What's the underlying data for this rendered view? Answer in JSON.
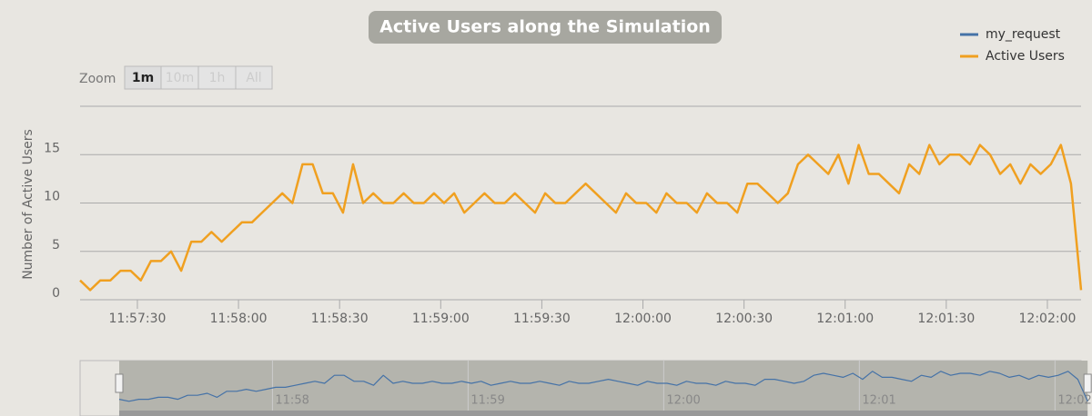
{
  "chart_data": {
    "type": "line",
    "title": "Active Users along the Simulation",
    "y_label": "Number of Active Users",
    "zoom": {
      "label": "Zoom",
      "buttons": [
        "1m",
        "10m",
        "1h",
        "All"
      ]
    },
    "x": [
      "11:57:13",
      "11:57:16",
      "11:57:19",
      "11:57:22",
      "11:57:25",
      "11:57:28",
      "11:57:31",
      "11:57:34",
      "11:57:37",
      "11:57:40",
      "11:57:43",
      "11:57:46",
      "11:57:49",
      "11:57:52",
      "11:57:55",
      "11:57:58",
      "11:58:01",
      "11:58:04",
      "11:58:07",
      "11:58:10",
      "11:58:13",
      "11:58:16",
      "11:58:19",
      "11:58:22",
      "11:58:25",
      "11:58:28",
      "11:58:31",
      "11:58:34",
      "11:58:37",
      "11:58:40",
      "11:58:43",
      "11:58:46",
      "11:58:49",
      "11:58:52",
      "11:58:55",
      "11:58:58",
      "11:59:01",
      "11:59:04",
      "11:59:07",
      "11:59:10",
      "11:59:13",
      "11:59:16",
      "11:59:19",
      "11:59:22",
      "11:59:25",
      "11:59:28",
      "11:59:31",
      "11:59:34",
      "11:59:37",
      "11:59:40",
      "11:59:43",
      "11:59:46",
      "11:59:49",
      "11:59:52",
      "11:59:55",
      "11:59:58",
      "12:00:01",
      "12:00:04",
      "12:00:07",
      "12:00:10",
      "12:00:13",
      "12:00:16",
      "12:00:19",
      "12:00:22",
      "12:00:25",
      "12:00:28",
      "12:00:31",
      "12:00:34",
      "12:00:37",
      "12:00:40",
      "12:00:43",
      "12:00:46",
      "12:00:49",
      "12:00:52",
      "12:00:55",
      "12:00:58",
      "12:01:01",
      "12:01:04",
      "12:01:07",
      "12:01:10",
      "12:01:13",
      "12:01:16",
      "12:01:19",
      "12:01:22",
      "12:01:25",
      "12:01:28",
      "12:01:31",
      "12:01:34",
      "12:01:37",
      "12:01:40",
      "12:01:43",
      "12:01:46",
      "12:01:49",
      "12:01:52",
      "12:01:55",
      "12:01:58",
      "12:02:01",
      "12:02:04",
      "12:02:07",
      "12:02:10"
    ],
    "series": [
      {
        "name": "my_request",
        "color": "#4572a7",
        "values": [
          null,
          null,
          null,
          null,
          null,
          null,
          null,
          null,
          null,
          null,
          null,
          null,
          null,
          null,
          null,
          null,
          null,
          null,
          null,
          null,
          null,
          null,
          null,
          null,
          null,
          null,
          null,
          null,
          null,
          null,
          null,
          null,
          null,
          null,
          null,
          null,
          null,
          null,
          null,
          null,
          null,
          null,
          null,
          null,
          null,
          null,
          null,
          null,
          null,
          null,
          null,
          null,
          null,
          null,
          null,
          null,
          null,
          null,
          null,
          null,
          null,
          null,
          null,
          null,
          null,
          null,
          null,
          null,
          null,
          null,
          null,
          null,
          null,
          null,
          null,
          null,
          null,
          null,
          null,
          null,
          null,
          null,
          null,
          null,
          null,
          null,
          null,
          null,
          null,
          null,
          null,
          null,
          null,
          null,
          null,
          null,
          null,
          null,
          null,
          null
        ]
      },
      {
        "name": "Active Users",
        "color": "#f0a020",
        "values": [
          2,
          1,
          2,
          2,
          3,
          3,
          2,
          4,
          4,
          5,
          3,
          6,
          6,
          7,
          6,
          7,
          8,
          8,
          9,
          10,
          11,
          10,
          14,
          14,
          11,
          11,
          9,
          14,
          10,
          11,
          10,
          10,
          11,
          10,
          10,
          11,
          10,
          11,
          9,
          10,
          11,
          10,
          10,
          11,
          10,
          9,
          11,
          10,
          10,
          11,
          12,
          11,
          10,
          9,
          11,
          10,
          10,
          9,
          11,
          10,
          10,
          9,
          11,
          10,
          10,
          9,
          12,
          12,
          11,
          10,
          11,
          14,
          15,
          14,
          13,
          15,
          12,
          16,
          13,
          13,
          12,
          11,
          14,
          13,
          16,
          14,
          15,
          15,
          14,
          16,
          15,
          13,
          14,
          12,
          14,
          13,
          14,
          16,
          12,
          1
        ]
      }
    ],
    "xlim": [
      "11:57:13",
      "12:02:10"
    ],
    "xticks": [
      "11:57:30",
      "11:58:00",
      "11:58:30",
      "11:59:00",
      "11:59:30",
      "12:00:00",
      "12:00:30",
      "12:01:00",
      "12:01:30",
      "12:02:00"
    ],
    "ylim": [
      0,
      20
    ],
    "yticks": [
      0,
      5,
      10,
      15
    ],
    "grid": true,
    "legend": "top-right",
    "navigator": {
      "xlim": [
        "11:57:01",
        "12:02:08"
      ],
      "xticks": [
        "11:58",
        "11:59",
        "12:00",
        "12:01",
        "12:02"
      ]
    }
  }
}
